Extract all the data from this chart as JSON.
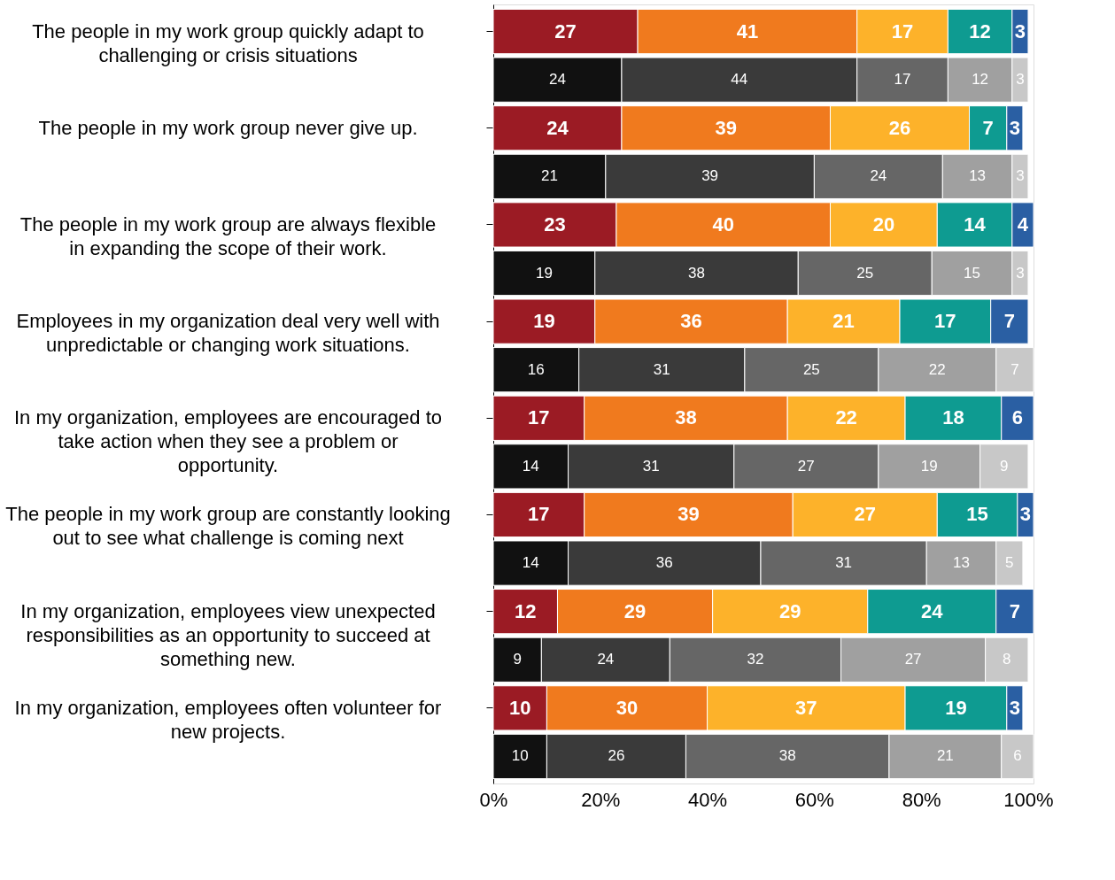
{
  "chart_data": {
    "type": "bar",
    "orientation": "horizontal",
    "stacked": true,
    "data_labels": true,
    "categories": [
      "The people in my work group quickly adapt to challenging or crisis situations",
      null,
      "The people in my work group never give up.",
      null,
      "The people in my work group are always  flexible in expanding the scope of their work.",
      null,
      "Employees in my organization deal very well with unpredictable or changing work situations.",
      null,
      "In my organization, employees are encouraged to take action when they see a problem or opportunity.",
      null,
      "The people in my work group are constantly looking out to see what challenge is coming next",
      null,
      "In my organization, employees view unexpected responsibilities as an opportunity to succeed at something new.",
      null,
      "In my organization, employees often volunteer for new projects.",
      null
    ],
    "series": [
      {
        "color": "#9b1b24",
        "values": [
          27,
          null,
          24,
          null,
          23,
          null,
          19,
          null,
          17,
          null,
          17,
          null,
          12,
          null,
          10,
          null
        ]
      },
      {
        "color": "#f07a1e",
        "values": [
          41,
          null,
          39,
          null,
          40,
          null,
          36,
          null,
          38,
          null,
          39,
          null,
          29,
          null,
          30,
          null
        ]
      },
      {
        "color": "#fdb22a",
        "values": [
          17,
          null,
          26,
          null,
          20,
          null,
          21,
          null,
          22,
          null,
          27,
          null,
          29,
          null,
          37,
          null
        ]
      },
      {
        "color": "#0e9b91",
        "values": [
          12,
          null,
          7,
          null,
          14,
          null,
          17,
          null,
          18,
          null,
          15,
          null,
          24,
          null,
          19,
          null
        ]
      },
      {
        "color": "#2a5fa3",
        "values": [
          3,
          null,
          3,
          null,
          4,
          null,
          7,
          null,
          6,
          null,
          3,
          null,
          7,
          null,
          3,
          null
        ]
      },
      {
        "color": "#111111",
        "values": [
          null,
          24,
          null,
          21,
          null,
          19,
          null,
          16,
          null,
          14,
          null,
          14,
          null,
          9,
          null,
          10
        ]
      },
      {
        "color": "#3a3a3a",
        "values": [
          null,
          44,
          null,
          39,
          null,
          38,
          null,
          31,
          null,
          31,
          null,
          36,
          null,
          24,
          null,
          26
        ]
      },
      {
        "color": "#666666",
        "values": [
          null,
          17,
          null,
          24,
          null,
          25,
          null,
          25,
          null,
          27,
          null,
          31,
          null,
          32,
          null,
          38
        ]
      },
      {
        "color": "#a0a0a0",
        "values": [
          null,
          12,
          null,
          13,
          null,
          15,
          null,
          22,
          null,
          19,
          null,
          13,
          null,
          27,
          null,
          21
        ]
      },
      {
        "color": "#c8c8c8",
        "values": [
          null,
          3,
          null,
          3,
          null,
          3,
          null,
          7,
          null,
          9,
          null,
          5,
          null,
          8,
          null,
          6
        ]
      }
    ],
    "xlim": [
      0,
      101
    ],
    "xticks": [
      {
        "value": 0,
        "label": "0%"
      },
      {
        "value": 20,
        "label": "20%"
      },
      {
        "value": 40,
        "label": "40%"
      },
      {
        "value": 60,
        "label": "60%"
      },
      {
        "value": 80,
        "label": "80%"
      },
      {
        "value": 100,
        "label": "100%"
      }
    ]
  }
}
